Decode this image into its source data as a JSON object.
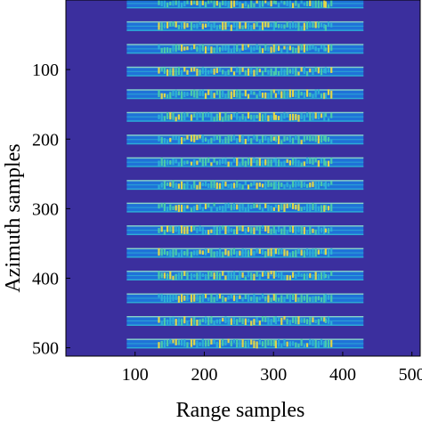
{
  "chart_data": {
    "type": "heatmap",
    "title": "",
    "xlabel": "Range samples",
    "ylabel": "Azimuth samples",
    "xlim": [
      0,
      512
    ],
    "ylim": [
      0,
      512
    ],
    "y_reversed": true,
    "x_ticks": [
      100,
      200,
      300,
      400,
      500
    ],
    "y_ticks": [
      100,
      200,
      300,
      400,
      500
    ],
    "x_tick_labels": [
      "100",
      "200",
      "300",
      "400",
      "500"
    ],
    "y_tick_labels": [
      "100",
      "200",
      "300",
      "400",
      "500"
    ],
    "colormap": "parula",
    "background_value_color": "#3b2f9e",
    "stripes": {
      "count": 16,
      "first_center": 5,
      "spacing": 32.6,
      "width": 14,
      "range_start": 88,
      "range_end": 430
    },
    "speckle_segments": [
      [
        133,
        178
      ],
      [
        180,
        300
      ],
      [
        302,
        372
      ],
      [
        374,
        385
      ]
    ],
    "colors": {
      "background": "#3b2f9e",
      "stripe_base": "#1f72d8",
      "stripe_edge": "#2fb5d6",
      "stripe_high": "#9de3c4",
      "speckle_hot": "#f5df3b",
      "speckle_mid": "#4ed2a6"
    }
  }
}
